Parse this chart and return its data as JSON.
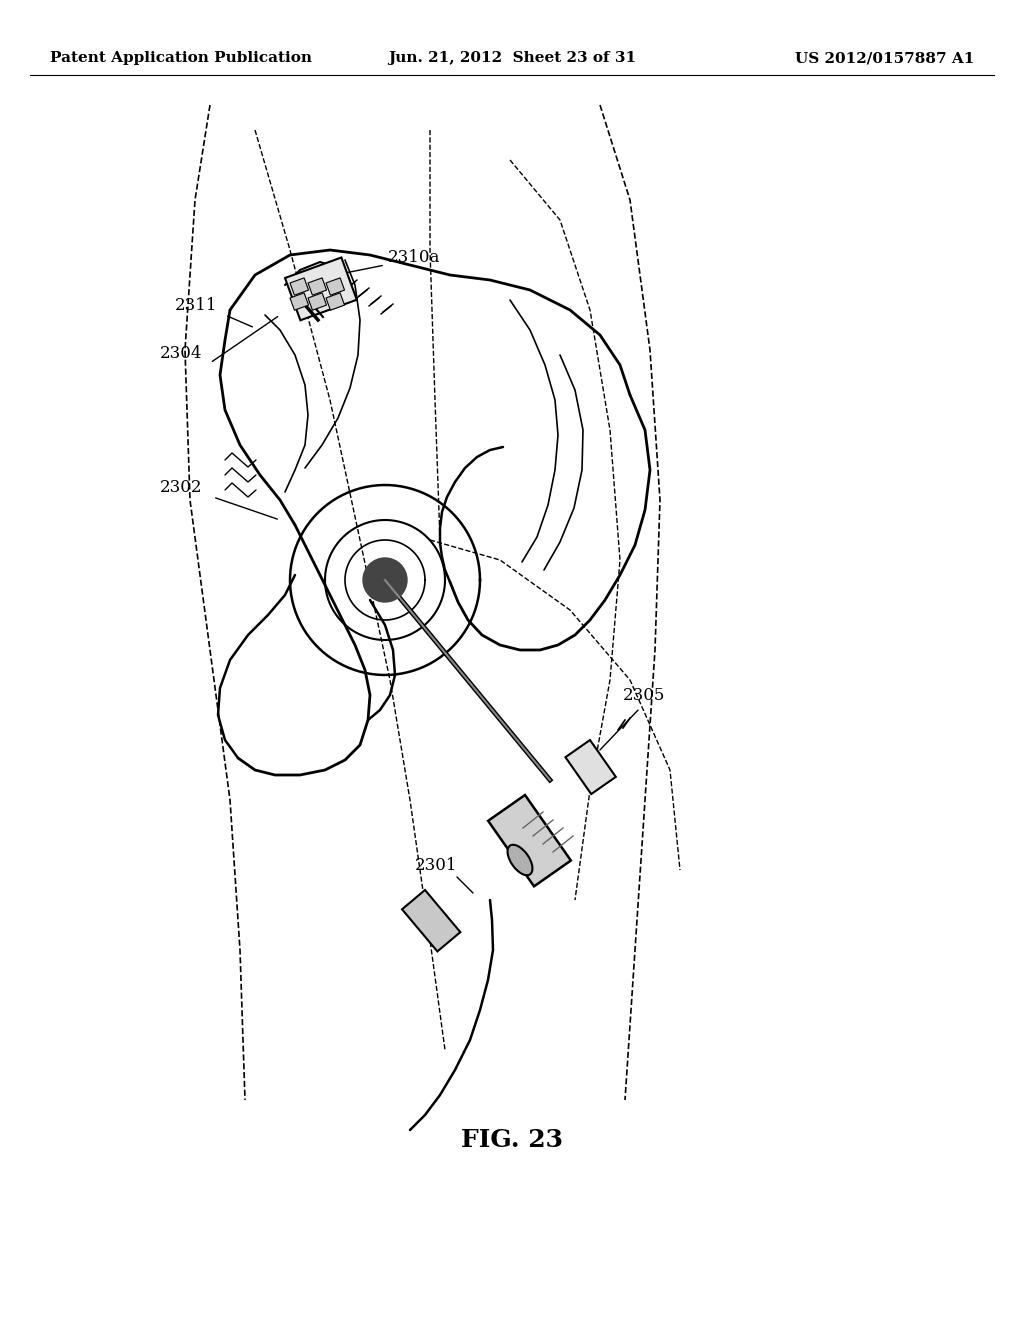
{
  "header_left": "Patent Application Publication",
  "header_middle": "Jun. 21, 2012  Sheet 23 of 31",
  "header_right": "US 2012/0157887 A1",
  "figure_label": "FIG. 23",
  "bg_color": "#ffffff",
  "line_color": "#000000",
  "text_color": "#000000",
  "header_fontsize": 11,
  "label_fontsize": 12,
  "fig_label_fontsize": 18
}
